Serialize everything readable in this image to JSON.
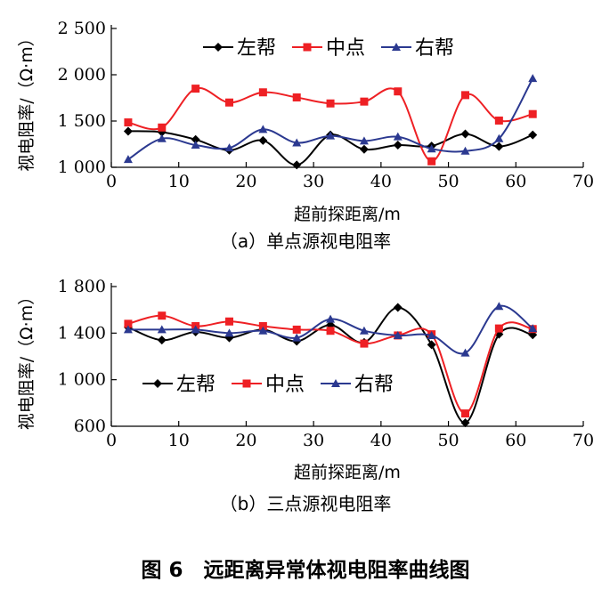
{
  "figure_title": "图 6　远距离异常体视电阻率曲线图",
  "chart_data": [
    {
      "type": "line",
      "caption": "（a）单点源视电阻率",
      "xlabel": "超前探距离/m",
      "ylabel": "视电阻率/（Ω·m）",
      "xlim": [
        0,
        70
      ],
      "ylim": [
        1000,
        2500
      ],
      "xticks": [
        0,
        10,
        20,
        30,
        40,
        50,
        60,
        70
      ],
      "yticks": [
        1000,
        1500,
        2000,
        2500
      ],
      "ytick_labels": [
        "1 000",
        "1 500",
        "2 000",
        "2 500"
      ],
      "legend_position": "top-center",
      "smooth": true,
      "x": [
        2.5,
        7.5,
        12.5,
        17.5,
        22.5,
        27.5,
        32.5,
        37.5,
        42.5,
        47.5,
        52.5,
        57.5,
        62.5
      ],
      "series": [
        {
          "name": "左帮",
          "color": "#000000",
          "marker": "diamond",
          "values": [
            1390,
            1380,
            1300,
            1185,
            1290,
            1025,
            1350,
            1195,
            1240,
            1230,
            1360,
            1225,
            1350
          ]
        },
        {
          "name": "中点",
          "color": "#ee2024",
          "marker": "square",
          "values": [
            1485,
            1430,
            1850,
            1700,
            1810,
            1755,
            1690,
            1710,
            1820,
            1065,
            1780,
            1505,
            1575
          ]
        },
        {
          "name": "右帮",
          "color": "#2b3990",
          "marker": "triangle",
          "values": [
            1085,
            1310,
            1240,
            1210,
            1410,
            1265,
            1340,
            1285,
            1330,
            1200,
            1175,
            1310,
            1960
          ]
        }
      ]
    },
    {
      "type": "line",
      "caption": "（b）三点源视电阻率",
      "xlabel": "超前探距离/m",
      "ylabel": "视电阻率/（Ω·m）",
      "xlim": [
        0,
        70
      ],
      "ylim": [
        600,
        1800
      ],
      "xticks": [
        0,
        10,
        20,
        30,
        40,
        50,
        60,
        70
      ],
      "yticks": [
        600,
        1000,
        1400,
        1800
      ],
      "ytick_labels": [
        "600",
        "1 000",
        "1 400",
        "1 800"
      ],
      "legend_position": "lower-left",
      "smooth": true,
      "x": [
        2.5,
        7.5,
        12.5,
        17.5,
        22.5,
        27.5,
        32.5,
        37.5,
        42.5,
        47.5,
        52.5,
        57.5,
        62.5
      ],
      "series": [
        {
          "name": "左帮",
          "color": "#000000",
          "marker": "diamond",
          "values": [
            1450,
            1340,
            1410,
            1360,
            1430,
            1330,
            1470,
            1320,
            1620,
            1300,
            630,
            1390,
            1385
          ]
        },
        {
          "name": "中点",
          "color": "#ee2024",
          "marker": "square",
          "values": [
            1480,
            1550,
            1460,
            1500,
            1460,
            1430,
            1420,
            1310,
            1380,
            1390,
            710,
            1440,
            1435
          ]
        },
        {
          "name": "右帮",
          "color": "#2b3990",
          "marker": "triangle",
          "values": [
            1430,
            1430,
            1430,
            1400,
            1420,
            1360,
            1520,
            1420,
            1380,
            1380,
            1230,
            1630,
            1440
          ]
        }
      ]
    }
  ]
}
